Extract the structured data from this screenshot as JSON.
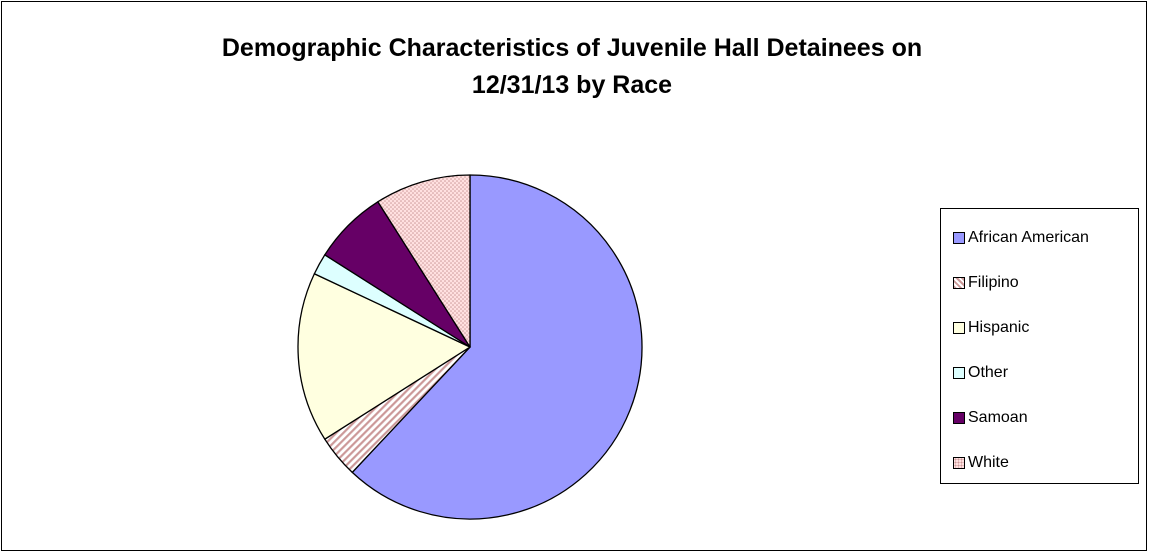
{
  "chart_data": {
    "type": "pie",
    "title": "Demographic Characteristics of Juvenile Hall Detainees on 12/31/13 by Race",
    "title_lines": [
      "Demographic Characteristics of Juvenile Hall Detainees on",
      "12/31/13 by Race"
    ],
    "categories": [
      "African American",
      "Filipino",
      "Hispanic",
      "Other",
      "Samoan",
      "White"
    ],
    "values": [
      62,
      4,
      16,
      2,
      7,
      9
    ],
    "unit": "percent",
    "colors": [
      "#9999ff",
      "#cc9999",
      "#ffffe0",
      "#ddffff",
      "#660066",
      "#ffe0e0"
    ],
    "patterns": [
      "solid",
      "diagonal-hatch",
      "solid",
      "solid",
      "solid",
      "fine-dots"
    ],
    "legend_position": "right",
    "start_angle": "12 o'clock",
    "direction": "clockwise"
  }
}
